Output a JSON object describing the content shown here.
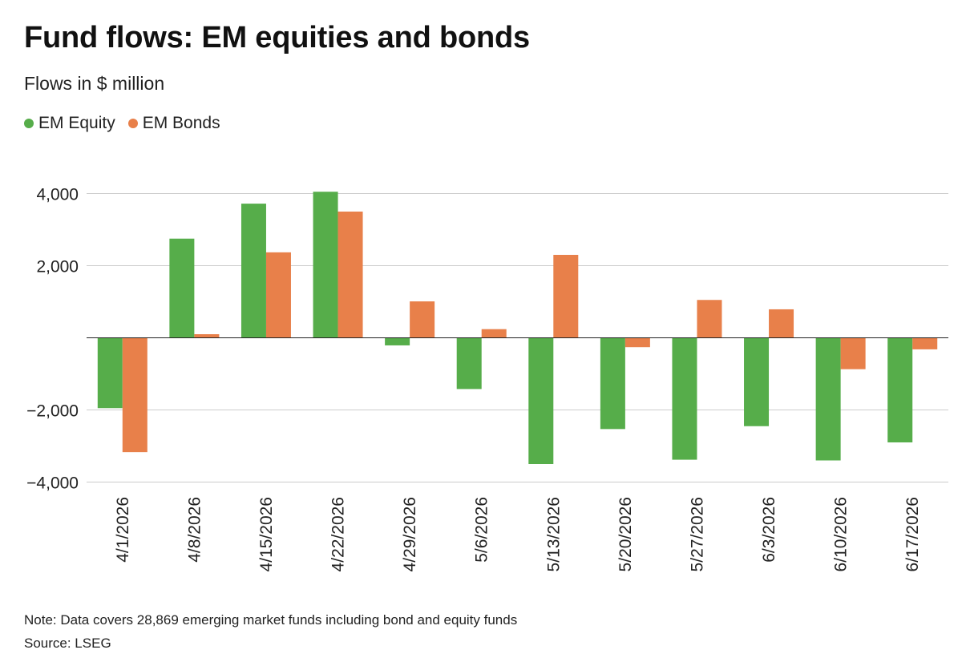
{
  "header": {
    "title": "Fund flows: EM equities and bonds",
    "subtitle": "Flows in $ million"
  },
  "footer": {
    "note": "Note: Data covers 28,869 emerging market funds including bond and equity funds",
    "source": "Source: LSEG"
  },
  "colors": {
    "equity": "#56ad4a",
    "bonds": "#e8804a",
    "grid": "#cccccc",
    "zero_line": "#222222"
  },
  "chart_data": {
    "type": "bar",
    "title": "Fund flows: EM equities and bonds",
    "subtitle": "Flows in $ million",
    "legend_position": "top-left",
    "grid": true,
    "categories": [
      "4/1/2026",
      "4/8/2026",
      "4/15/2026",
      "4/22/2026",
      "4/29/2026",
      "5/6/2026",
      "5/13/2026",
      "5/20/2026",
      "5/27/2026",
      "6/3/2026",
      "6/10/2026",
      "6/17/2026"
    ],
    "series": [
      {
        "name": "EM Equity",
        "color": "#56ad4a",
        "values": [
          -1950,
          2750,
          3720,
          4050,
          -210,
          -1420,
          -3500,
          -2530,
          -3380,
          -2450,
          -3400,
          -2900
        ]
      },
      {
        "name": "EM Bonds",
        "color": "#e8804a",
        "values": [
          -3170,
          100,
          2370,
          3500,
          1010,
          240,
          2300,
          -260,
          1050,
          790,
          -870,
          -320
        ]
      }
    ],
    "ylim": [
      -4200,
      4400
    ],
    "yticks": [
      4000,
      2000,
      -2000,
      -4000
    ],
    "ytick_labels": [
      "4,000",
      "2,000",
      "−2,000",
      "−4,000"
    ]
  }
}
